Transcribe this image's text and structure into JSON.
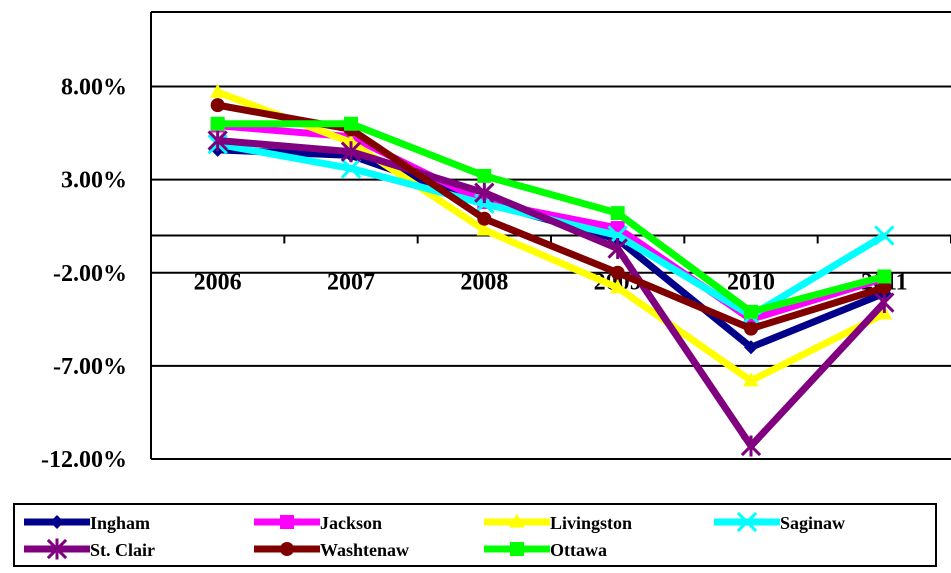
{
  "chart_data": {
    "type": "line",
    "categories": [
      "2006",
      "2007",
      "2008",
      "2009",
      "2010",
      "2011"
    ],
    "y_tick_labels": [
      "8.00%",
      "3.00%",
      "-2.00%",
      "-7.00%",
      "-12.00%"
    ],
    "y_ticks": [
      8,
      3,
      -2,
      -7,
      -12
    ],
    "ylim": [
      -12,
      12
    ],
    "grid": true,
    "legend_position": "bottom",
    "series": [
      {
        "name": "Ingham",
        "color": "#00008B",
        "marker": "diamond",
        "values": [
          4.6,
          4.3,
          1.8,
          -0.2,
          -6.0,
          -3.1
        ]
      },
      {
        "name": "Jackson",
        "color": "#FF00FF",
        "marker": "square",
        "values": [
          5.9,
          5.3,
          1.8,
          0.4,
          -4.5,
          -2.3
        ]
      },
      {
        "name": "Livingston",
        "color": "#FFFF00",
        "marker": "triangle",
        "values": [
          7.7,
          5.0,
          0.3,
          -2.8,
          -7.8,
          -4.2
        ]
      },
      {
        "name": "Saginaw",
        "color": "#00FFFF",
        "marker": "x",
        "values": [
          4.9,
          3.6,
          1.7,
          0.0,
          -4.3,
          0.0
        ]
      },
      {
        "name": "St. Clair",
        "color": "#800080",
        "marker": "star",
        "values": [
          5.1,
          4.5,
          2.3,
          -0.7,
          -11.3,
          -3.6
        ]
      },
      {
        "name": "Washtenaw",
        "color": "#800000",
        "marker": "circle",
        "values": [
          7.0,
          5.7,
          0.9,
          -2.0,
          -5.0,
          -2.8
        ]
      },
      {
        "name": "Ottawa",
        "color": "#00FF00",
        "marker": "square",
        "values": [
          6.0,
          6.0,
          3.2,
          1.2,
          -4.1,
          -2.2
        ]
      }
    ]
  }
}
